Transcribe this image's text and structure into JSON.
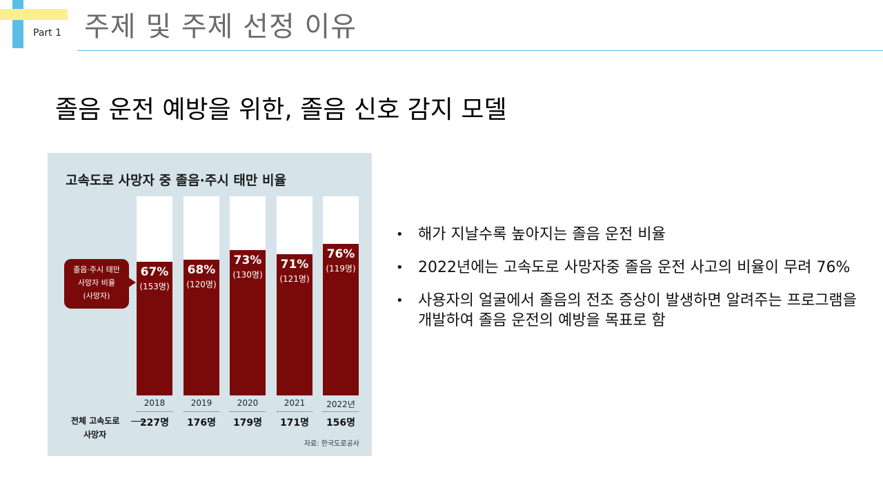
{
  "header": {
    "part_label": "Part 1",
    "title": "주제 및 주제 선정 이유"
  },
  "subtitle": "졸음 운전 예방을 위한, 졸음 신호 감지 모델",
  "infographic": {
    "title": "고속도로 사망자 중 졸음·주시 태만 비율",
    "callout_lines": [
      "졸음·주시 태만",
      "사망자 비율",
      "(사망자)"
    ],
    "total_label_line1": "전체 고속도로",
    "total_label_line2": "사망자",
    "source": "자료: 한국도로공사",
    "colors": {
      "bar": "#7a0a0a",
      "panel": "#d6e4ea"
    }
  },
  "chart_data": {
    "type": "bar",
    "title": "고속도로 사망자 중 졸음·주시 태만 비율",
    "categories": [
      "2018",
      "2019",
      "2020",
      "2021",
      "2022년"
    ],
    "series": [
      {
        "values": [
          67,
          68,
          73,
          71,
          76
        ],
        "labels": [
          "67%",
          "68%",
          "73%",
          "71%",
          "76%"
        ],
        "count_labels": [
          "(153명)",
          "(120명)",
          "(130명)",
          "(121명)",
          "(119명)"
        ]
      }
    ],
    "totals": [
      "227명",
      "176명",
      "179명",
      "171명",
      "156명"
    ],
    "ylim": [
      0,
      100
    ]
  },
  "bullets": [
    "해가 지날수록 높아지는 졸음 운전 비율",
    "2022년에는 고속도로 사망자중 졸음 운전 사고의 비율이 무려 76%",
    "사용자의 얼굴에서 졸음의 전조 증상이 발생하면 알려주는 프로그램을 개발하여 졸음 운전의 예방을 목표로 함"
  ]
}
